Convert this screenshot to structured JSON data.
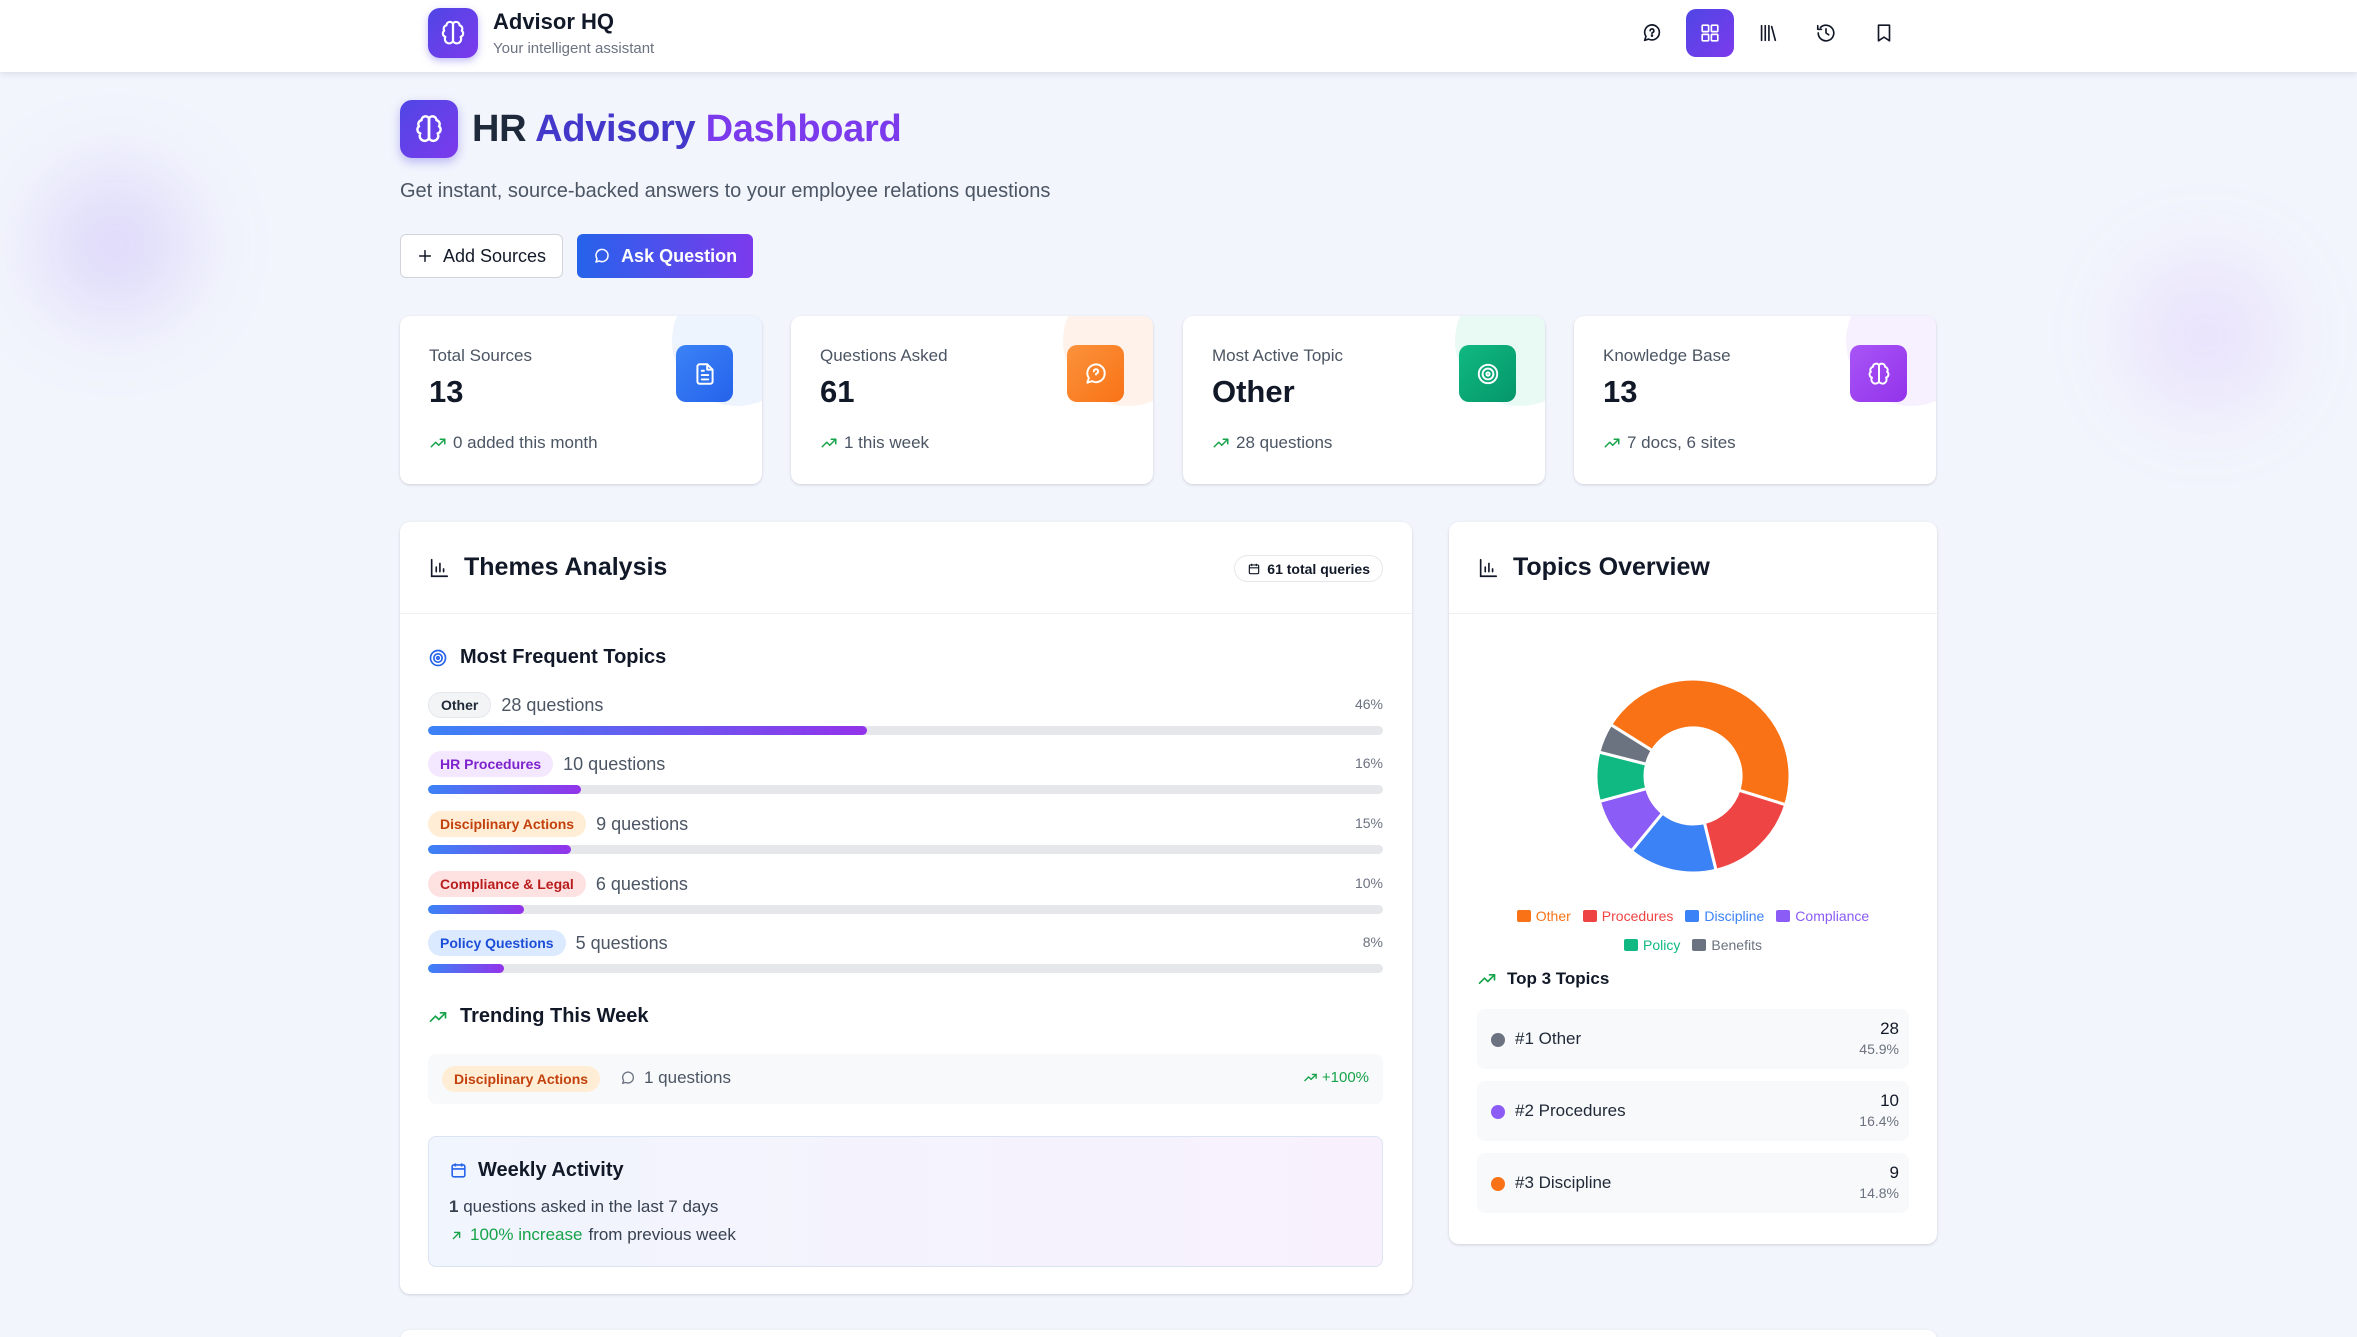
{
  "app": {
    "name": "Advisor HQ",
    "tagline": "Your intelligent assistant",
    "nav": [
      "chat-icon",
      "dashboard-icon",
      "library-icon",
      "history-icon",
      "bookmark-icon"
    ]
  },
  "page": {
    "title_part1": "HR",
    "title_part2": "Advisory",
    "title_part3": "Dashboard",
    "subtitle": "Get instant, source-backed answers to your employee relations questions",
    "add_sources_label": "Add Sources",
    "ask_question_label": "Ask Question"
  },
  "stats": [
    {
      "label": "Total Sources",
      "value": "13",
      "foot": "0 added this month",
      "icon": "document-icon",
      "color": "#3b82f6"
    },
    {
      "label": "Questions Asked",
      "value": "61",
      "foot": "1 this week",
      "icon": "chat-icon",
      "color": "#f97316"
    },
    {
      "label": "Most Active Topic",
      "value": "Other",
      "foot": "28 questions",
      "icon": "target-icon",
      "color": "#10b981"
    },
    {
      "label": "Knowledge Base",
      "value": "13",
      "foot": "7 docs, 6 sites",
      "icon": "brain-icon",
      "color": "#a855f7"
    }
  ],
  "themes": {
    "title": "Themes Analysis",
    "total_queries": "61 total queries",
    "frequent_title": "Most Frequent Topics",
    "topics": [
      {
        "tag": "Other",
        "questions": "28 questions",
        "pct_label": "46%",
        "share": 0.46
      },
      {
        "tag": "HR Procedures",
        "questions": "10 questions",
        "pct_label": "16%",
        "share": 0.16
      },
      {
        "tag": "Disciplinary Actions",
        "questions": "9 questions",
        "pct_label": "15%",
        "share": 0.15
      },
      {
        "tag": "Compliance & Legal",
        "questions": "6 questions",
        "pct_label": "10%",
        "share": 0.1
      },
      {
        "tag": "Policy Questions",
        "questions": "5 questions",
        "pct_label": "8%",
        "share": 0.08
      }
    ],
    "trending_title": "Trending This Week",
    "trending": {
      "tag": "Disciplinary Actions",
      "questions": "1 questions",
      "change": "+100%"
    },
    "weekly": {
      "title": "Weekly Activity",
      "count": "1",
      "line1_rest": "questions asked in the last 7 days",
      "increase": "100% increase",
      "line2_rest": "from previous week"
    }
  },
  "topics_overview": {
    "title": "Topics Overview",
    "top3_title": "Top 3 Topics",
    "top3": [
      {
        "rank_label": "#1 Other",
        "count": "28",
        "pct": "45.9%",
        "dot": "#6b7280"
      },
      {
        "rank_label": "#2 Procedures",
        "count": "10",
        "pct": "16.4%",
        "dot": "#8b5cf6"
      },
      {
        "rank_label": "#3 Discipline",
        "count": "9",
        "pct": "14.8%",
        "dot": "#f97316"
      }
    ]
  },
  "chart_data": {
    "type": "pie",
    "donut": true,
    "categories": [
      "Other",
      "Procedures",
      "Discipline",
      "Compliance",
      "Policy",
      "Benefits"
    ],
    "values": [
      28,
      10,
      9,
      6,
      5,
      3
    ],
    "colors": [
      "#f97316",
      "#ef4444",
      "#3b82f6",
      "#8b5cf6",
      "#10b981",
      "#6b7280"
    ],
    "legend_position": "bottom"
  }
}
